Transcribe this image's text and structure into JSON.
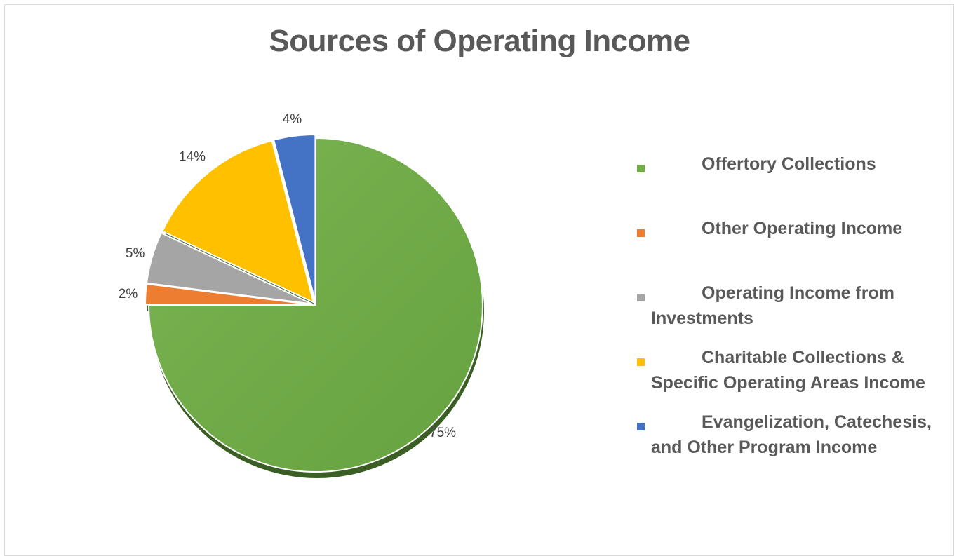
{
  "chart_data": {
    "type": "pie",
    "title": "Sources of Operating Income",
    "legend_position": "right",
    "slices": [
      {
        "name": "Offertory Collections",
        "value": 75,
        "label": "75%",
        "color": "#70ad47"
      },
      {
        "name": "Other Operating Income",
        "value": 2,
        "label": "2%",
        "color": "#ed7d31"
      },
      {
        "name": "Operating Income from Investments",
        "value": 5,
        "label": "5%",
        "color": "#a5a5a5"
      },
      {
        "name": "Charitable Collections & Specific Operating Areas Income",
        "value": 14,
        "label": "14%",
        "color": "#ffc000"
      },
      {
        "name": "Evangelization, Catechesis, and Other Program Income",
        "value": 4,
        "label": "4%",
        "color": "#4472c4"
      }
    ]
  }
}
